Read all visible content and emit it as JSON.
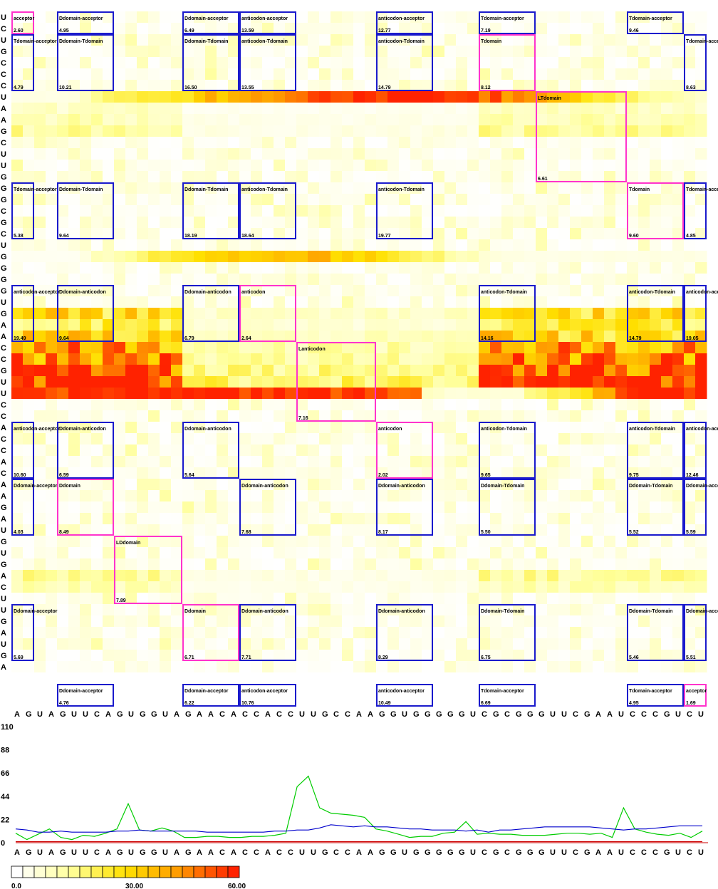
{
  "chart_data": {
    "type": "heatmap",
    "x_sequence": [
      "A",
      "G",
      "U",
      "A",
      "G",
      "U",
      "U",
      "C",
      "A",
      "G",
      "U",
      "G",
      "G",
      "U",
      "A",
      "G",
      "A",
      "A",
      "C",
      "A",
      "C",
      "C",
      "A",
      "C",
      "C",
      "U",
      "U",
      "G",
      "C",
      "C",
      "A",
      "A",
      "G",
      "G",
      "U",
      "G",
      "G",
      "G",
      "G",
      "G",
      "U",
      "C",
      "G",
      "C",
      "G",
      "G",
      "G",
      "U",
      "U",
      "C",
      "G",
      "A",
      "A",
      "U",
      "C",
      "C",
      "C",
      "G",
      "U",
      "C",
      "U"
    ],
    "y_sequence": [
      "U",
      "C",
      "U",
      "G",
      "C",
      "C",
      "C",
      "U",
      "A",
      "A",
      "G",
      "C",
      "U",
      "U",
      "G",
      "G",
      "G",
      "C",
      "G",
      "C",
      "U",
      "G",
      "G",
      "G",
      "G",
      "U",
      "G",
      "A",
      "A",
      "C",
      "C",
      "G",
      "U",
      "U",
      "C",
      "C",
      "A",
      "C",
      "C",
      "A",
      "C",
      "A",
      "A",
      "G",
      "A",
      "U",
      "G",
      "U",
      "G",
      "A",
      "C",
      "U",
      "U",
      "G",
      "A",
      "U",
      "G",
      "A"
    ],
    "color_scale": {
      "min_label": "0.0",
      "mid_label": "30.00",
      "max_label": "60.00",
      "min": 0,
      "max": 60,
      "colors": [
        "#ffffff",
        "#ffff99",
        "#ffe000",
        "#ff9900",
        "#ff2200"
      ]
    },
    "row_bands": [
      {
        "row": 7,
        "values": [
          4,
          4,
          4,
          10,
          18,
          22,
          24,
          28,
          30,
          34,
          38,
          42,
          46,
          50,
          54,
          58,
          60,
          60,
          60,
          60,
          60,
          58,
          56,
          54,
          50,
          48,
          44,
          40,
          36,
          30,
          26,
          22,
          18,
          14,
          10,
          8
        ]
      },
      {
        "row": 21,
        "values": [
          2,
          2,
          2,
          4,
          10,
          14,
          18,
          22,
          26,
          28,
          30,
          32,
          34,
          36,
          38,
          38,
          36,
          34,
          30,
          26,
          22,
          18,
          14,
          10,
          6,
          4,
          4,
          4,
          4,
          4,
          4,
          4,
          4,
          4,
          4,
          4
        ]
      },
      {
        "row": 33,
        "values": [
          60,
          60,
          60,
          60,
          60,
          60,
          60,
          60,
          60,
          60,
          60,
          60,
          60,
          60,
          60,
          60,
          60,
          60,
          54,
          50,
          46,
          8,
          6,
          6,
          6,
          6,
          16,
          20,
          24,
          30,
          40,
          52,
          60,
          60,
          60,
          60
        ]
      }
    ],
    "boxes": [
      {
        "label": "acceptor",
        "value": "2.60",
        "magenta": true
      },
      {
        "label": "Ddomain-acceptor",
        "value": "4.95"
      },
      {
        "label": "Ddomain-acceptor",
        "value": "6.49"
      },
      {
        "label": "anticodon-acceptor",
        "value": "13.59"
      },
      {
        "label": "anticodon-acceptor",
        "value": "12.77"
      },
      {
        "label": "Tdomain-acceptor",
        "value": "7.19"
      },
      {
        "label": "Tdomain-acceptor",
        "value": "9.46"
      },
      {
        "label": "Tdomain-acceptor",
        "value": "4.79"
      },
      {
        "label": "Ddomain-Tdomain",
        "value": "10.21"
      },
      {
        "label": "Ddomain-Tdomain",
        "value": "16.50"
      },
      {
        "label": "anticodon-Tdomain",
        "value": "13.55"
      },
      {
        "label": "anticodon-Tdomain",
        "value": "14.79"
      },
      {
        "label": "Tdomain",
        "value": "8.12",
        "magenta": true
      },
      {
        "label": "Tdomain-acceptor",
        "value": "8.63"
      },
      {
        "label": "LTdomain",
        "value": "6.61",
        "magenta": true
      },
      {
        "label": "Tdomain-acceptor",
        "value": "5.38"
      },
      {
        "label": "Ddomain-Tdomain",
        "value": "9.64"
      },
      {
        "label": "Ddomain-Tdomain",
        "value": "18.19"
      },
      {
        "label": "anticodon-Tdomain",
        "value": "18.64"
      },
      {
        "label": "anticodon-Tdomain",
        "value": "19.77"
      },
      {
        "label": "Tdomain",
        "value": "9.60",
        "magenta": true
      },
      {
        "label": "Tdomain-acceptor",
        "value": "4.85"
      },
      {
        "label": "anticodon-acceptor",
        "value": "19.49"
      },
      {
        "label": "Ddomain-anticodon",
        "value": "9.64"
      },
      {
        "label": "Ddomain-anticodon",
        "value": "6.79"
      },
      {
        "label": "anticodon",
        "value": "2.64",
        "magenta": true
      },
      {
        "label": "anticodon-Tdomain",
        "value": "14.16"
      },
      {
        "label": "anticodon-Tdomain",
        "value": "14.79"
      },
      {
        "label": "anticodon-acceptor",
        "value": "19.05"
      },
      {
        "label": "Lanticodon",
        "value": "7.16",
        "magenta": true
      },
      {
        "label": "anticodon-acceptor",
        "value": "10.60"
      },
      {
        "label": "Ddomain-anticodon",
        "value": "6.59"
      },
      {
        "label": "Ddomain-anticodon",
        "value": "5.64"
      },
      {
        "label": "anticodon",
        "value": "2.02",
        "magenta": true
      },
      {
        "label": "anticodon-Tdomain",
        "value": "9.65"
      },
      {
        "label": "anticodon-Tdomain",
        "value": "9.75"
      },
      {
        "label": "anticodon-acceptor",
        "value": "12.46"
      },
      {
        "label": "Ddomain-acceptor",
        "value": "4.03"
      },
      {
        "label": "Ddomain",
        "value": "8.49",
        "magenta": true
      },
      {
        "label": "Ddomain-anticodon",
        "value": "7.68"
      },
      {
        "label": "Ddomain-anticodon",
        "value": "8.17"
      },
      {
        "label": "Ddomain-Tdomain",
        "value": "5.50"
      },
      {
        "label": "Ddomain-Tdomain",
        "value": "5.52"
      },
      {
        "label": "Ddomain-acceptor",
        "value": "5.59"
      },
      {
        "label": "LDdomain",
        "value": "7.89",
        "magenta": true
      },
      {
        "label": "Ddomain-acceptor",
        "value": "5.69"
      },
      {
        "label": "Ddomain",
        "value": "6.71",
        "magenta": true
      },
      {
        "label": "Ddomain-anticodon",
        "value": "7.71"
      },
      {
        "label": "Ddomain-anticodon",
        "value": "8.29"
      },
      {
        "label": "Ddomain-Tdomain",
        "value": "6.75"
      },
      {
        "label": "Ddomain-Tdomain",
        "value": "5.46"
      },
      {
        "label": "Ddomain-acceptor",
        "value": "5.51"
      },
      {
        "label": "Ddomain-acceptor",
        "value": "4.76"
      },
      {
        "label": "Ddomain-acceptor",
        "value": "6.22"
      },
      {
        "label": "anticodon-acceptor",
        "value": "10.76"
      },
      {
        "label": "anticodon-acceptor",
        "value": "10.49"
      },
      {
        "label": "Tdomain-acceptor",
        "value": "6.69"
      },
      {
        "label": "Tdomain-acceptor",
        "value": "4.95"
      },
      {
        "label": "acceptor",
        "value": "1.69",
        "magenta": true
      }
    ],
    "line_plot": {
      "type": "line",
      "y_ticks": [
        "110",
        "88",
        "66",
        "44",
        "22",
        "0"
      ],
      "ylim": [
        0,
        110
      ],
      "series": [
        {
          "color": "#00cc00",
          "values": [
            9,
            3,
            8,
            13,
            5,
            3,
            7,
            6,
            9,
            13,
            37,
            12,
            11,
            14,
            11,
            5,
            5,
            6,
            6,
            5,
            5,
            6,
            6,
            7,
            9,
            53,
            63,
            33,
            28,
            27,
            26,
            24,
            13,
            11,
            8,
            5,
            6,
            6,
            9,
            10,
            20,
            8,
            9,
            8,
            8,
            7,
            7,
            7,
            8,
            9,
            9,
            8,
            9,
            5,
            33,
            13,
            10,
            8,
            7,
            9,
            5,
            11
          ]
        },
        {
          "color": "#0000cc",
          "values": [
            13,
            12,
            10,
            10,
            11,
            10,
            10,
            10,
            10,
            11,
            11,
            12,
            11,
            11,
            11,
            11,
            11,
            10,
            10,
            10,
            10,
            10,
            10,
            11,
            11,
            12,
            12,
            14,
            17,
            16,
            15,
            16,
            15,
            15,
            14,
            13,
            13,
            12,
            12,
            12,
            11,
            12,
            10,
            12,
            12,
            13,
            14,
            15,
            15,
            15,
            15,
            15,
            14,
            13,
            12,
            13,
            13,
            14,
            15,
            16,
            16,
            16
          ]
        },
        {
          "color": "#cc0000",
          "values": [
            1,
            1,
            1,
            1,
            1,
            1,
            1,
            1,
            1,
            1,
            1,
            1,
            1,
            1,
            1,
            1,
            1,
            1,
            1,
            1,
            1,
            1,
            1,
            1,
            1,
            1,
            1,
            1,
            1,
            1,
            1,
            1,
            1,
            1,
            1,
            1,
            1,
            1,
            1,
            1,
            1,
            1,
            1,
            1,
            1,
            1,
            1,
            1,
            1,
            1,
            1,
            1,
            1,
            1,
            1,
            1,
            1,
            1,
            1,
            1,
            1,
            1
          ]
        }
      ]
    }
  }
}
